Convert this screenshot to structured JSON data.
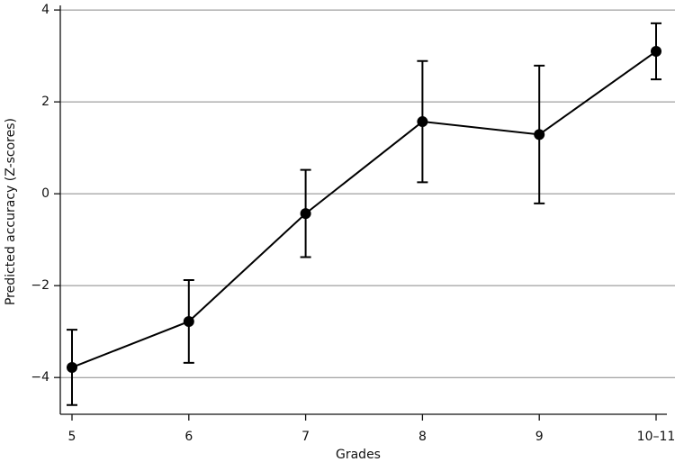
{
  "chart_data": {
    "type": "line",
    "x_label": "Grades",
    "y_label": "Predicted accuracy (Z-scores)",
    "categories": [
      "5",
      "6",
      "7",
      "8",
      "9",
      "10–11"
    ],
    "series": [
      {
        "color": "#000000",
        "values": [
          -3.78,
          -2.78,
          -0.43,
          1.57,
          1.29,
          3.1
        ],
        "errors": [
          0.82,
          0.9,
          0.95,
          1.32,
          1.5,
          0.61
        ]
      }
    ],
    "ylim": [
      -4.8,
      4.1
    ],
    "yticks": [
      {
        "value": -4,
        "label": "−4"
      },
      {
        "value": -2,
        "label": "−2"
      },
      0,
      2,
      4
    ],
    "grid": true
  }
}
